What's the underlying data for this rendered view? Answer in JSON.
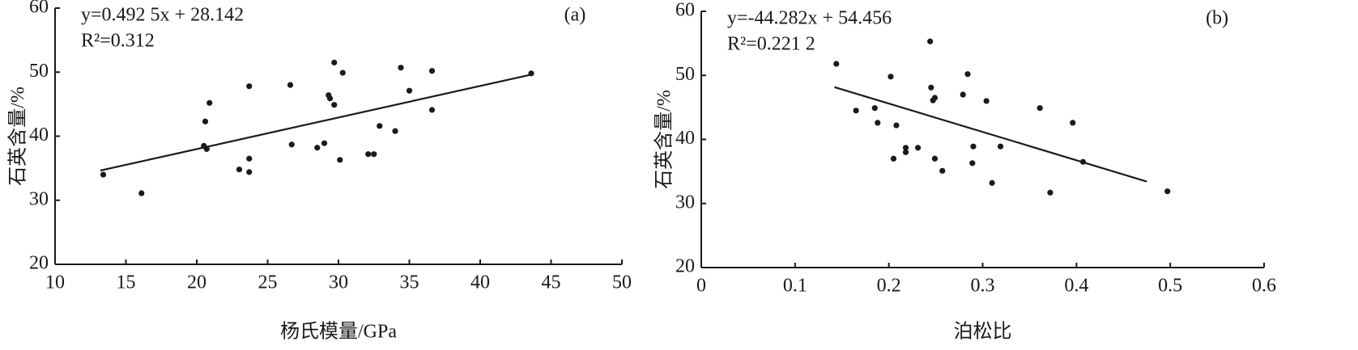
{
  "chart_data": [
    {
      "type": "scatter",
      "panel_label": "(a)",
      "equation": "y=0.492 5x + 28.142",
      "r2": "R²=0.312",
      "xlabel": "杨氏模量/GPa",
      "ylabel": "石英含量/%",
      "color": "#1a1a1a",
      "x": [
        13.4,
        16.1,
        20.6,
        20.5,
        20.7,
        20.9,
        23.0,
        23.7,
        23.7,
        23.7,
        26.6,
        26.7,
        28.5,
        29.0,
        29.3,
        29.4,
        29.7,
        29.7,
        30.1,
        30.3,
        32.1,
        32.5,
        32.9,
        34.0,
        34.4,
        35.0,
        36.6,
        36.6,
        43.6
      ],
      "values": [
        34.0,
        31.1,
        42.3,
        38.5,
        38.0,
        45.2,
        34.8,
        47.8,
        36.5,
        34.4,
        48.0,
        38.7,
        38.2,
        38.9,
        46.4,
        45.9,
        44.9,
        51.5,
        36.3,
        49.9,
        37.2,
        37.2,
        41.6,
        40.8,
        50.7,
        47.1,
        50.2,
        44.1,
        49.8
      ],
      "fit": {
        "slope": 0.4925,
        "intercept": 28.142,
        "x_range": [
          13.2,
          43.6
        ]
      },
      "xlim": [
        10,
        50
      ],
      "ylim": [
        20,
        60
      ],
      "xticks": [
        10,
        15,
        20,
        25,
        30,
        35,
        40,
        45,
        50
      ],
      "yticks": [
        20,
        30,
        40,
        50,
        60
      ]
    },
    {
      "type": "scatter",
      "panel_label": "(b)",
      "equation": "y=-44.282x + 54.456",
      "r2": "R²=0.221 2",
      "xlabel": "泊松比",
      "ylabel": "石英含量/%",
      "color": "#1a1a1a",
      "x": [
        0.144,
        0.165,
        0.185,
        0.188,
        0.202,
        0.205,
        0.208,
        0.218,
        0.218,
        0.231,
        0.244,
        0.245,
        0.247,
        0.249,
        0.249,
        0.257,
        0.279,
        0.284,
        0.289,
        0.29,
        0.304,
        0.31,
        0.319,
        0.361,
        0.372,
        0.396,
        0.407,
        0.497
      ],
      "values": [
        51.8,
        44.5,
        44.9,
        42.6,
        49.8,
        37.0,
        42.2,
        38.7,
        38.0,
        38.7,
        55.3,
        48.1,
        46.1,
        46.5,
        37.0,
        35.1,
        47.0,
        50.2,
        36.3,
        38.9,
        46.0,
        33.2,
        38.9,
        44.9,
        31.7,
        42.6,
        36.5,
        31.9
      ],
      "fit": {
        "slope": -44.282,
        "intercept": 54.456,
        "x_range": [
          0.142,
          0.475
        ]
      },
      "xlim": [
        0,
        0.6
      ],
      "ylim": [
        20,
        60
      ],
      "xticks": [
        0,
        0.1,
        0.2,
        0.3,
        0.4,
        0.5,
        0.6
      ],
      "yticks": [
        20,
        30,
        40,
        50,
        60
      ]
    }
  ]
}
